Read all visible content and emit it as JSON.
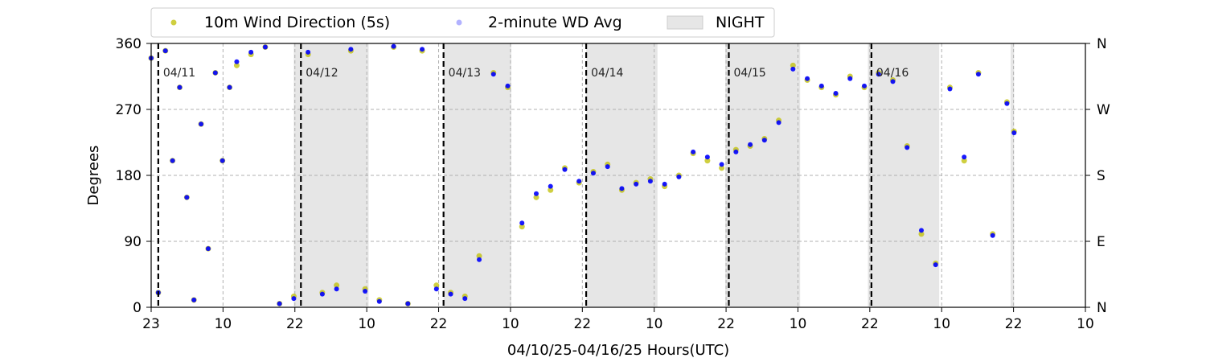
{
  "chart_data": {
    "type": "scatter",
    "xlabel": "04/10/25-04/16/25  Hours(UTC)",
    "ylabel": "Degrees",
    "x_tick_labels": [
      "23",
      "10",
      "22",
      "10",
      "22",
      "10",
      "22",
      "10",
      "22",
      "10",
      "22",
      "10",
      "22",
      "10"
    ],
    "y_ticks": [
      0,
      90,
      180,
      270,
      360
    ],
    "y_ticks_right": [
      "N",
      "E",
      "S",
      "W",
      "N"
    ],
    "ylim": [
      0,
      360
    ],
    "xlim_hours": [
      0,
      131
    ],
    "legend": {
      "placement": "top",
      "entries": [
        "10m Wind Direction (5s)",
        "2-minute WD Avg",
        "NIGHT"
      ]
    },
    "day_labels": [
      "04/11",
      "04/12",
      "04/13",
      "04/14",
      "04/15",
      "04/16"
    ],
    "day_boundary_hours": [
      1,
      21,
      41,
      61,
      81,
      101
    ],
    "night_periods_hours": [
      [
        20,
        30.5
      ],
      [
        41,
        50.5
      ],
      [
        61,
        71
      ],
      [
        80.5,
        91
      ],
      [
        100.5,
        110.5
      ],
      [
        120.5,
        121
      ]
    ],
    "grid": true,
    "colors": {
      "wd_5s": "#bfbf00",
      "wd_avg": "#0000ff",
      "night": "#e6e6e6"
    },
    "series": [
      {
        "name": "10m Wind Direction (5s)",
        "x_hours": [
          0,
          1,
          2,
          3,
          4,
          5,
          6,
          7,
          8,
          9,
          10,
          11,
          12,
          14,
          16,
          18,
          20,
          22,
          24,
          26,
          28,
          30,
          32,
          34,
          36,
          38,
          40,
          42,
          44,
          46,
          48,
          50,
          52,
          54,
          56,
          58,
          60,
          62,
          64,
          66,
          68,
          70,
          72,
          74,
          76,
          78,
          80,
          82,
          84,
          86,
          88,
          90,
          92,
          94,
          96,
          98,
          100,
          102,
          104,
          106,
          108,
          110,
          112,
          114,
          116,
          118,
          120,
          121
        ],
        "y_deg": [
          340,
          20,
          350,
          200,
          300,
          150,
          10,
          250,
          80,
          320,
          200,
          300,
          330,
          345,
          355,
          5,
          15,
          345,
          20,
          30,
          350,
          25,
          10,
          355,
          5,
          350,
          30,
          20,
          15,
          70,
          320,
          300,
          110,
          150,
          160,
          190,
          170,
          185,
          195,
          160,
          170,
          175,
          165,
          180,
          210,
          200,
          190,
          215,
          220,
          230,
          255,
          330,
          310,
          300,
          290,
          315,
          300,
          320,
          310,
          220,
          100,
          60,
          300,
          200,
          320,
          100,
          280,
          240
        ]
      },
      {
        "name": "2-minute WD Avg",
        "x_hours": [
          0,
          1,
          2,
          3,
          4,
          5,
          6,
          7,
          8,
          9,
          10,
          11,
          12,
          14,
          16,
          18,
          20,
          22,
          24,
          26,
          28,
          30,
          32,
          34,
          36,
          38,
          40,
          42,
          44,
          46,
          48,
          50,
          52,
          54,
          56,
          58,
          60,
          62,
          64,
          66,
          68,
          70,
          72,
          74,
          76,
          78,
          80,
          82,
          84,
          86,
          88,
          90,
          92,
          94,
          96,
          98,
          100,
          102,
          104,
          106,
          108,
          110,
          112,
          114,
          116,
          118,
          120,
          121
        ],
        "y_deg": [
          340,
          20,
          350,
          200,
          300,
          150,
          10,
          250,
          80,
          320,
          200,
          300,
          335,
          348,
          355,
          5,
          12,
          348,
          18,
          25,
          352,
          22,
          8,
          356,
          5,
          352,
          25,
          18,
          12,
          65,
          318,
          302,
          115,
          155,
          165,
          188,
          172,
          183,
          192,
          162,
          168,
          172,
          168,
          178,
          212,
          205,
          195,
          212,
          222,
          228,
          252,
          325,
          312,
          302,
          292,
          312,
          302,
          318,
          308,
          218,
          105,
          58,
          298,
          205,
          318,
          98,
          278,
          238
        ]
      }
    ]
  }
}
